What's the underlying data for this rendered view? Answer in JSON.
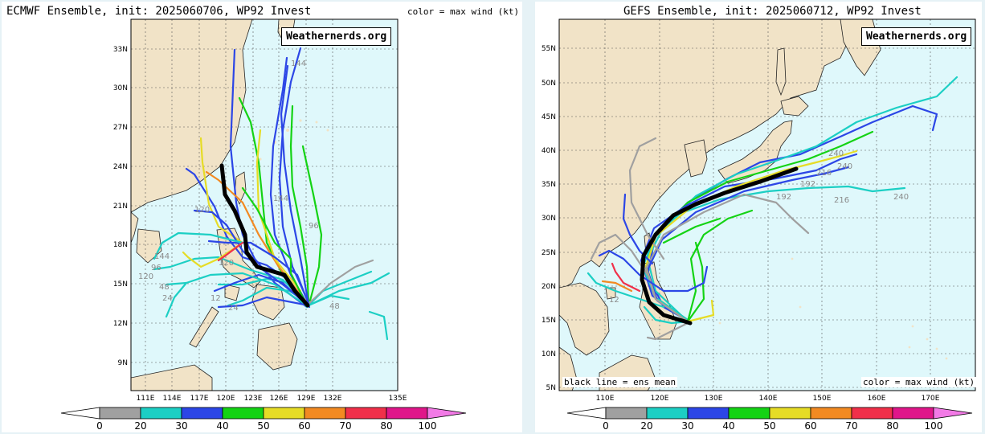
{
  "colors": {
    "ocean": "#dff8fb",
    "land": "#f1e3c7",
    "coast": "#222222",
    "bins": [
      "#a0a0a0",
      "#1ccfc4",
      "#2c46e6",
      "#14d314",
      "#e6dc26",
      "#f28a22",
      "#f0304a",
      "#e0168a",
      "#f27ae6"
    ]
  },
  "colorbar": {
    "labels": [
      "0",
      "20",
      "30",
      "40",
      "50",
      "60",
      "70",
      "80",
      "100"
    ]
  },
  "left": {
    "title": "ECMWF Ensemble, init: 2025060706, WP92 Invest",
    "subtitle": "color = max wind (kt)",
    "watermark": "Weathernerds.org",
    "lat_labels": [
      "33N",
      "30N",
      "27N",
      "24N",
      "21N",
      "18N",
      "15N",
      "12N",
      "9N"
    ],
    "lon_labels": [
      "111E",
      "114E",
      "117E",
      "120E",
      "123E",
      "126E",
      "129E",
      "132E",
      "135E"
    ],
    "hour_labels": [
      "144",
      "96",
      "120",
      "120",
      "144",
      "48",
      "24",
      "24",
      "48",
      "120",
      "96",
      "144",
      "12"
    ]
  },
  "right": {
    "title": "GEFS Ensemble, init: 2025060712, WP92 Invest",
    "watermark": "Weathernerds.org",
    "lat_labels": [
      "55N",
      "50N",
      "45N",
      "40N",
      "35N",
      "30N",
      "25N",
      "20N",
      "15N",
      "10N",
      "5N"
    ],
    "lon_labels": [
      "110E",
      "120E",
      "130E",
      "140E",
      "150E",
      "160E",
      "170E"
    ],
    "hour_labels": [
      "240",
      "216",
      "240",
      "192",
      "216",
      "240",
      "192",
      "12"
    ],
    "bottom_left": "black line = ens mean",
    "bottom_right": "color = max wind (kt)"
  }
}
